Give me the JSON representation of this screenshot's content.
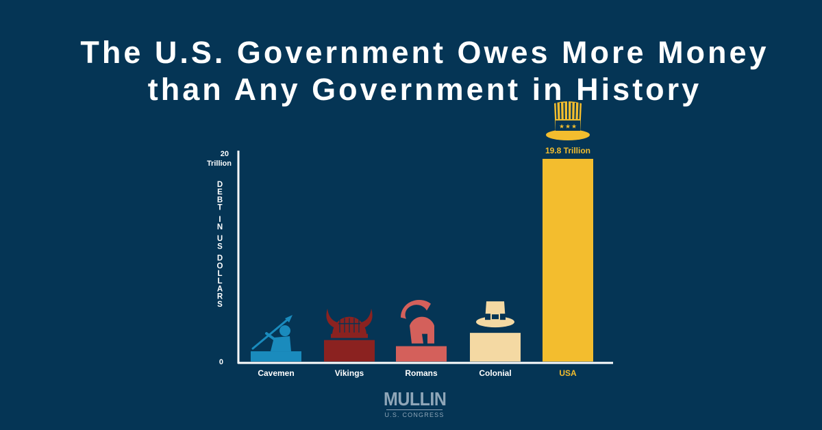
{
  "title": {
    "line1": "The U.S. Government Owes More Money",
    "line2": "than Any Government in History"
  },
  "chart_data": {
    "type": "bar",
    "categories": [
      "Cavemen",
      "Vikings",
      "Romans",
      "Colonial",
      "USA"
    ],
    "values": [
      1.0,
      2.1,
      1.5,
      2.8,
      19.8
    ],
    "ylim": [
      0,
      20
    ],
    "ytick_top": [
      "20",
      "Trillion"
    ],
    "ytick_bottom": "0",
    "ylabel": "DEBT IN US DOLLARS",
    "data_labels": {
      "USA": "19.8 Trillion"
    },
    "colors": [
      "#1a8bbd",
      "#8b2220",
      "#d4605b",
      "#f4d9a3",
      "#f3bd2e"
    ],
    "icons": [
      "caveman-spear-icon",
      "viking-helmet-icon",
      "roman-helmet-icon",
      "pilgrim-hat-icon",
      "uncle-sam-hat-icon"
    ],
    "grid": false,
    "legend": "none"
  },
  "logo": {
    "name": "MULLIN",
    "sub": "U.S. CONGRESS"
  },
  "colors": {
    "background": "#053555",
    "axis": "#ffffff",
    "usa_label": "#f3bd2e"
  }
}
